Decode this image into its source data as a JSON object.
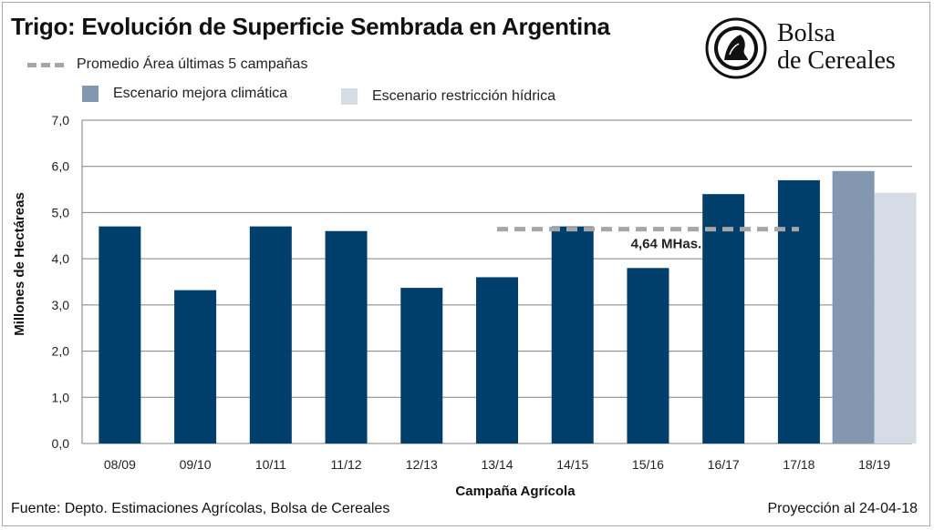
{
  "header": {
    "title": "Trigo: Evolución de Superficie Sembrada en Argentina"
  },
  "logo": {
    "line1": "Bolsa",
    "line2": "de Cereales",
    "icon": "seal-icon"
  },
  "legend": {
    "average": "Promedio Área últimas 5 campañas",
    "scenario_good": "Escenario mejora climática",
    "scenario_bad": "Escenario restricción hídrica"
  },
  "footer": {
    "source": "Fuente: Depto. Estimaciones Agrícolas, Bolsa de Cereales",
    "projection": "Proyección al 24-04-18"
  },
  "colors": {
    "bar": "#003f6b",
    "scenario_good": "#8497b0",
    "scenario_bad": "#d6dce5",
    "average_line": "#a6a6a6",
    "grid": "#808080"
  },
  "chart_data": {
    "type": "bar",
    "title": "Trigo: Evolución de Superficie Sembrada en Argentina",
    "xlabel": "Campaña Agrícola",
    "ylabel": "Millones de Hectáreas",
    "ylim": [
      0,
      7
    ],
    "yticks": [
      "0,0",
      "1,0",
      "2,0",
      "3,0",
      "4,0",
      "5,0",
      "6,0",
      "7,0"
    ],
    "grid": true,
    "categories": [
      "08/09",
      "09/10",
      "10/11",
      "11/12",
      "12/13",
      "13/14",
      "14/15",
      "15/16",
      "16/17",
      "17/18",
      "18/19"
    ],
    "values": [
      4.7,
      3.32,
      4.7,
      4.6,
      3.37,
      3.6,
      4.7,
      3.8,
      5.4,
      5.7,
      null
    ],
    "series": [
      {
        "name": "Escenario mejora climática",
        "values": [
          null,
          null,
          null,
          null,
          null,
          null,
          null,
          null,
          null,
          null,
          5.9
        ]
      },
      {
        "name": "Escenario restricción hídrica",
        "values": [
          null,
          null,
          null,
          null,
          null,
          null,
          null,
          null,
          null,
          null,
          5.43
        ]
      }
    ],
    "average_line": {
      "name": "Promedio Área últimas 5 campañas",
      "value": 4.64,
      "from": "13/14",
      "to": "17/18",
      "label": "4,64 MHas."
    }
  }
}
